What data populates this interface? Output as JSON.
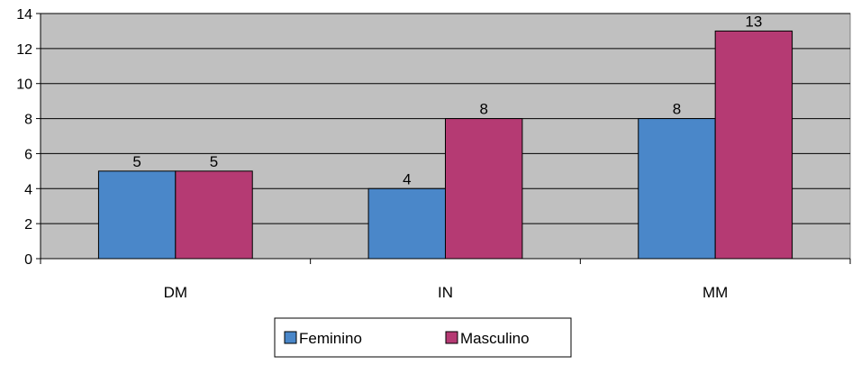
{
  "chart_data": {
    "type": "bar",
    "title": "",
    "xlabel": "",
    "ylabel": "",
    "categories": [
      "DM",
      "IN",
      "MM"
    ],
    "series": [
      {
        "name": "Feminino",
        "values": [
          5,
          4,
          8
        ],
        "color": "#4a87c9"
      },
      {
        "name": "Masculino",
        "values": [
          5,
          8,
          13
        ],
        "color": "#b53a73"
      }
    ],
    "ylim": [
      0,
      14
    ],
    "yticks": [
      0,
      2,
      4,
      6,
      8,
      10,
      12,
      14
    ],
    "grid": true,
    "legend_position": "bottom",
    "data_labels": true,
    "plot_background": "#c0c0c0",
    "gridline_color": "#000000"
  }
}
